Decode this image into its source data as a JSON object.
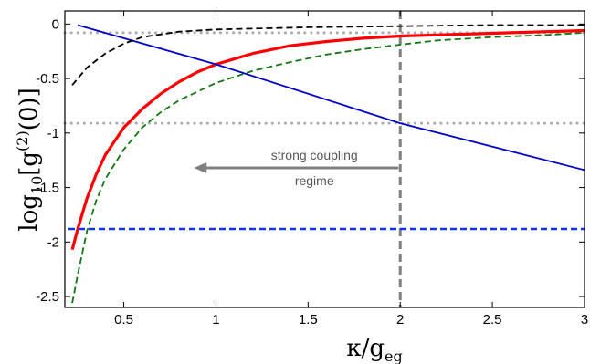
{
  "chart_data": {
    "type": "line",
    "title": "",
    "xlabel": {
      "main": "κ/g",
      "sub": "eg"
    },
    "ylabel": {
      "prefix": "log",
      "sub": "10",
      "mid": "[g",
      "sup": "(2)",
      "suffix": "(0)]"
    },
    "xlim": [
      0.18,
      3.0
    ],
    "ylim": [
      -2.6,
      0.12
    ],
    "x_ticks": [
      0.5,
      1,
      1.5,
      2,
      2.5,
      3
    ],
    "x_tick_labels": [
      "0.5",
      "1",
      "1.5",
      "2",
      "2.5",
      "3"
    ],
    "y_ticks": [
      0,
      -0.5,
      -1,
      -1.5,
      -2,
      -2.5
    ],
    "y_tick_labels": [
      "0",
      "-0.5",
      "-1",
      "-1.5",
      "-2",
      "-2.5"
    ],
    "grid": false,
    "legend": "none",
    "series": [
      {
        "style": "solid",
        "color": "#ff0000",
        "width": 3.2,
        "x": [
          0.22,
          0.25,
          0.3,
          0.35,
          0.4,
          0.5,
          0.6,
          0.7,
          0.8,
          0.9,
          1.0,
          1.2,
          1.4,
          1.6,
          1.8,
          2.0,
          2.2,
          2.4,
          2.6,
          2.8,
          3.0
        ],
        "y": [
          -2.07,
          -1.88,
          -1.6,
          -1.38,
          -1.2,
          -0.95,
          -0.78,
          -0.64,
          -0.53,
          -0.44,
          -0.37,
          -0.27,
          -0.2,
          -0.16,
          -0.13,
          -0.11,
          -0.1,
          -0.09,
          -0.08,
          -0.07,
          -0.06
        ]
      },
      {
        "style": "solid",
        "color": "#0000cc",
        "width": 1.8,
        "x": [
          0.25,
          1.0,
          2.0,
          3.0
        ],
        "y": [
          -0.01,
          -0.37,
          -0.91,
          -1.34
        ]
      },
      {
        "style": "dashed",
        "color": "#000000",
        "width": 1.8,
        "x": [
          0.22,
          0.3,
          0.4,
          0.5,
          0.6,
          0.8,
          1.0,
          1.5,
          2.0,
          2.5,
          3.0
        ],
        "y": [
          -0.56,
          -0.4,
          -0.27,
          -0.18,
          -0.12,
          -0.07,
          -0.05,
          -0.03,
          -0.02,
          -0.01,
          -0.01
        ]
      },
      {
        "style": "dashed",
        "color": "#117711",
        "width": 1.8,
        "x": [
          0.22,
          0.25,
          0.3,
          0.35,
          0.4,
          0.5,
          0.6,
          0.7,
          0.8,
          1.0,
          1.2,
          1.4,
          1.6,
          1.8,
          2.0,
          2.2,
          2.5,
          2.8,
          3.0
        ],
        "y": [
          -2.56,
          -2.3,
          -1.9,
          -1.62,
          -1.42,
          -1.15,
          -0.95,
          -0.81,
          -0.7,
          -0.54,
          -0.43,
          -0.35,
          -0.28,
          -0.23,
          -0.19,
          -0.15,
          -0.12,
          -0.1,
          -0.08
        ]
      },
      {
        "style": "dashed",
        "color": "#1133ee",
        "width": 2.5,
        "x": [
          0.2,
          3.0
        ],
        "y": [
          -1.88,
          -1.88
        ]
      }
    ],
    "reference_lines": [
      {
        "orientation": "horizontal",
        "value": -0.08,
        "style": "dotted",
        "color": "#aaaaaa"
      },
      {
        "orientation": "horizontal",
        "value": -0.91,
        "style": "dotted",
        "color": "#aaaaaa"
      },
      {
        "orientation": "vertical",
        "value": 2.0,
        "style": "dashed",
        "color": "#808080"
      }
    ],
    "annotations": [
      {
        "text_lines": [
          "strong coupling",
          "regime"
        ],
        "arrow_from_x": 1.99,
        "arrow_to_x": 0.88,
        "y": -1.32,
        "color": "#808080"
      }
    ]
  }
}
